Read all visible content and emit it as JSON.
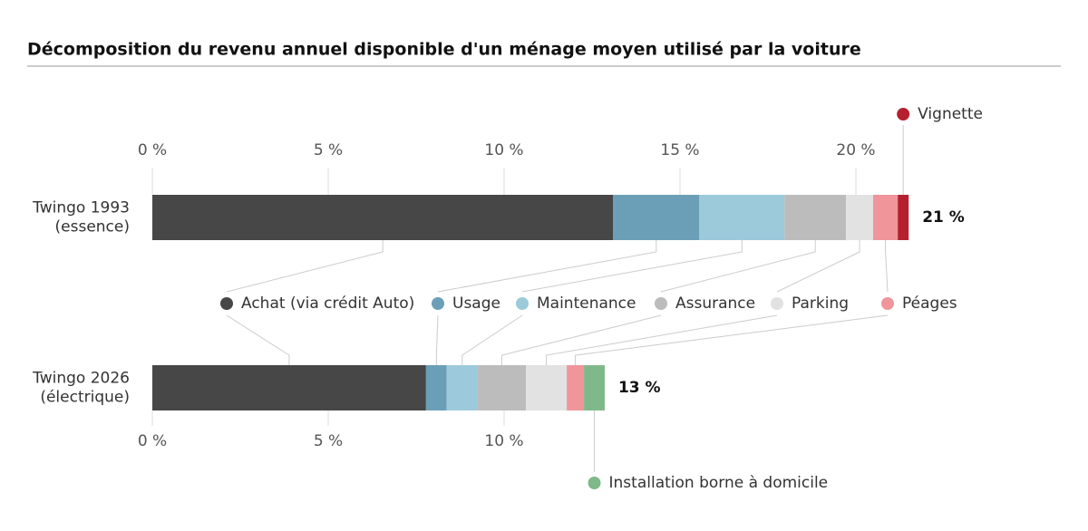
{
  "chart_data": {
    "type": "stacked-bar-horizontal",
    "title": "Décomposition du revenu annuel disponible d'un ménage moyen utilisé par la voiture",
    "categories": [
      [
        "Twingo 1993",
        "(essence)"
      ],
      [
        "Twingo 2026",
        "(électrique)"
      ]
    ],
    "series": [
      {
        "name": "Achat (via crédit Auto)",
        "color": "#474747",
        "values": [
          13.1,
          7.78
        ]
      },
      {
        "name": "Usage",
        "color": "#6b9fb8",
        "values": [
          2.45,
          0.59
        ]
      },
      {
        "name": "Maintenance",
        "color": "#9ccadb",
        "values": [
          2.42,
          0.88
        ]
      },
      {
        "name": "Assurance",
        "color": "#bcbcbc",
        "values": [
          1.75,
          1.37
        ]
      },
      {
        "name": "Parking",
        "color": "#e2e2e2",
        "values": [
          0.77,
          1.16
        ]
      },
      {
        "name": "Péages",
        "color": "#f0959a",
        "values": [
          0.7,
          0.49
        ]
      },
      {
        "name": "Vignette",
        "color": "#b5202e",
        "values": [
          0.31,
          null
        ]
      },
      {
        "name": "Installation borne à domicile",
        "color": "#7fb98a",
        "values": [
          null,
          0.59
        ]
      }
    ],
    "totals": {
      "values": [
        21,
        13
      ],
      "value_labels": [
        "21 %",
        "13 %"
      ]
    },
    "xlim": [
      0,
      25
    ],
    "xticks": [
      {
        "value": 0,
        "label": "0 %"
      },
      {
        "value": 5,
        "label": "5 %"
      },
      {
        "value": 10,
        "label": "10 %"
      },
      {
        "value": 15,
        "label": "15 %"
      },
      {
        "value": 20,
        "label": "20 %"
      }
    ],
    "xticks_bottom": [
      {
        "value": 0,
        "label": "0 %"
      },
      {
        "value": 5,
        "label": "5 %"
      },
      {
        "value": 10,
        "label": "10 %"
      }
    ]
  }
}
